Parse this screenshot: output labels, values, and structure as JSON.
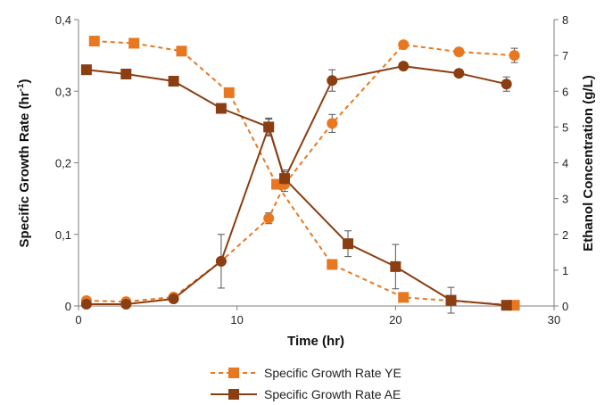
{
  "chart_data": {
    "type": "line",
    "title": "",
    "xlabel": "Time (hr)",
    "ylabel": "Specific Growth Rate (hr -1)",
    "ylabel_main": "Specific Growth Rate (hr",
    "ylabel_sup": "-1",
    "ylabel_close": ")",
    "y2label": "Ethanol Concentration (g/L)",
    "xlim": [
      0,
      30
    ],
    "ylim": [
      0,
      0.4
    ],
    "y2lim": [
      0,
      8
    ],
    "x_ticks": [
      0,
      10,
      20,
      30
    ],
    "y_ticks": [
      "0",
      "0,1",
      "0,2",
      "0,3",
      "0,4"
    ],
    "y_tick_values": [
      0,
      0.1,
      0.2,
      0.3,
      0.4
    ],
    "y2_ticks": [
      "0",
      "1",
      "2",
      "3",
      "4",
      "5",
      "6",
      "7",
      "8"
    ],
    "y2_tick_values": [
      0,
      1,
      2,
      3,
      4,
      5,
      6,
      7,
      8
    ],
    "grid": false,
    "legend_position": "bottom",
    "colors": {
      "ye": "#E87722",
      "ae": "#8B3E12"
    },
    "series": [
      {
        "name": "Specific Growth Rate YE",
        "axis": "left",
        "marker": "square",
        "dash": true,
        "color": "#E87722",
        "x": [
          1,
          3.5,
          6.5,
          9.5,
          12.5,
          16,
          20.5,
          27.5
        ],
        "y": [
          0.37,
          0.367,
          0.356,
          0.298,
          0.17,
          0.058,
          0.012,
          0.001
        ],
        "err": [
          0,
          0,
          0,
          0,
          0,
          0.006,
          0,
          0
        ]
      },
      {
        "name": "Specific Growth Rate AE",
        "axis": "left",
        "marker": "square",
        "dash": false,
        "color": "#8B3E12",
        "x": [
          0.5,
          3,
          6,
          9,
          12,
          13,
          17,
          20,
          23.5,
          27
        ],
        "y": [
          0.33,
          0.324,
          0.314,
          0.276,
          0.25,
          0.178,
          0.087,
          0.055,
          0.008,
          0.001
        ],
        "err": [
          0,
          0,
          0,
          0,
          0.011,
          0.012,
          0.018,
          0.031,
          0.018,
          0
        ]
      },
      {
        "axis": "right",
        "marker": "circle",
        "dash": true,
        "color": "#E87722",
        "x": [
          0.5,
          3,
          6,
          9,
          12,
          13,
          16,
          20.5,
          24,
          27.5
        ],
        "y": [
          0.15,
          0.12,
          0.25,
          1.25,
          2.45,
          3.4,
          5.1,
          7.3,
          7.1,
          7.0
        ],
        "err": [
          0,
          0,
          0,
          0,
          0.15,
          0.2,
          0.25,
          0,
          0.1,
          0.2
        ]
      },
      {
        "axis": "right",
        "marker": "circle",
        "dash": false,
        "color": "#8B3E12",
        "x": [
          0.5,
          3,
          6,
          9,
          12,
          13,
          16,
          20.5,
          24,
          27
        ],
        "y": [
          0.05,
          0.05,
          0.2,
          1.25,
          5.0,
          3.55,
          6.3,
          6.7,
          6.5,
          6.2
        ],
        "err": [
          0,
          0,
          0,
          0.75,
          0.25,
          0.2,
          0.3,
          0,
          0.1,
          0.2
        ]
      }
    ]
  }
}
